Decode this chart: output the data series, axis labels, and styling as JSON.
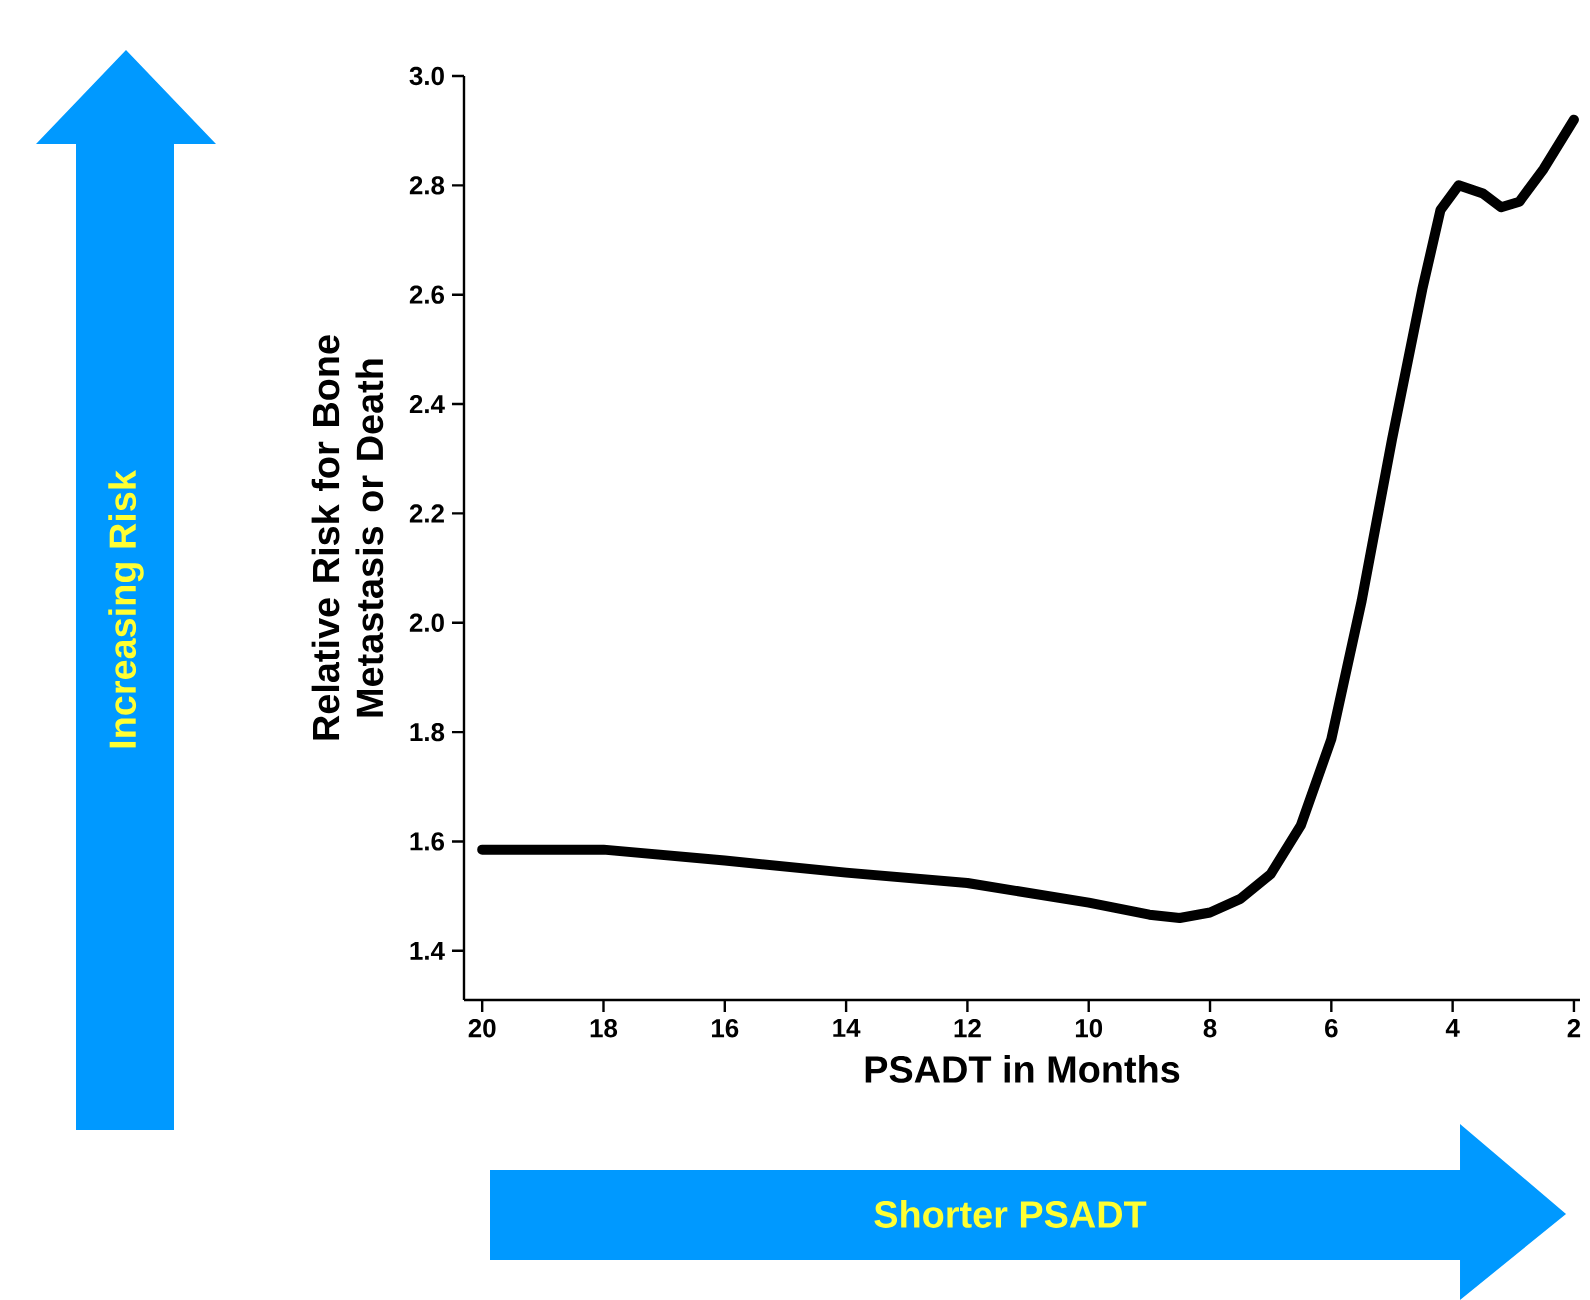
{
  "chart_data": {
    "type": "line",
    "xlabel": "PSADT in Months",
    "ylabel": "Relative Risk for Bone Metastasis or Death",
    "x": [
      20,
      18,
      16,
      14,
      12,
      10,
      9,
      8.5,
      8,
      7.5,
      7,
      6.5,
      6,
      5.5,
      5,
      4.5,
      4.2,
      3.9,
      3.5,
      3.2,
      2.9,
      2.5,
      2
    ],
    "series": [
      {
        "color": "#000000",
        "values": [
          1.585,
          1.585,
          1.565,
          1.543,
          1.524,
          1.488,
          1.466,
          1.46,
          1.47,
          1.495,
          1.54,
          1.63,
          1.787,
          2.04,
          2.335,
          2.61,
          2.755,
          2.8,
          2.785,
          2.76,
          2.77,
          2.83,
          2.92
        ]
      }
    ],
    "xlim": [
      20.3,
      1.9
    ],
    "ylim": [
      1.31,
      3.0
    ],
    "xticks": [
      20,
      18,
      16,
      14,
      12,
      10,
      8,
      6,
      4,
      2
    ],
    "yticks": [
      {
        "value": 1.4,
        "label": "1.4"
      },
      {
        "value": 1.6,
        "label": "1.6"
      },
      {
        "value": 1.8,
        "label": "1.8"
      },
      {
        "value": 2.0,
        "label": "2.0"
      },
      {
        "value": 2.2,
        "label": "2.2"
      },
      {
        "value": 2.4,
        "label": "2.4"
      },
      {
        "value": 2.6,
        "label": "2.6"
      },
      {
        "value": 2.8,
        "label": "2.8"
      },
      {
        "value": 3.0,
        "label": "3.0"
      }
    ],
    "annotations": [
      "Increasing Risk",
      "Shorter PSADT"
    ],
    "grid": false,
    "marker": "none",
    "line_style": "solid"
  }
}
